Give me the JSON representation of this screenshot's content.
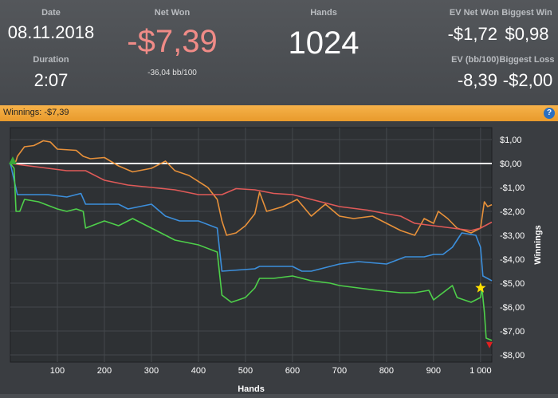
{
  "stats": {
    "date_label": "Date",
    "date_value": "08.11.2018",
    "duration_label": "Duration",
    "duration_value": "2:07",
    "net_won_label": "Net Won",
    "net_won_value": "-$7,39",
    "net_won_sub": "-36,04 bb/100",
    "hands_label": "Hands",
    "hands_value": "1024",
    "ev_net_won_label": "EV Net Won",
    "ev_net_won_value": "-$1,72",
    "biggest_win_label": "Biggest Win",
    "biggest_win_value": "$0,98",
    "ev_bb_label": "EV (bb/100)",
    "ev_bb_value": "-8,39",
    "biggest_loss_label": "Biggest Loss",
    "biggest_loss_value": "-$2,00"
  },
  "tab": {
    "label": "Winnings: -$7,39",
    "help_icon": "question-icon"
  },
  "colors": {
    "net_won": "#4ed04a",
    "ev": "#e8913a",
    "showdown": "#3c8fdc",
    "non_showdown": "#e05a58",
    "zero_line": "#ffffff",
    "negative": "#f08b87"
  },
  "chart_data": {
    "type": "line",
    "xlabel": "Hands",
    "ylabel": "Winnings",
    "xlim": [
      0,
      1024
    ],
    "ylim": [
      -8.3,
      1.5
    ],
    "x_ticks": [
      100,
      200,
      300,
      400,
      500,
      600,
      700,
      800,
      900,
      1000
    ],
    "x_tick_labels": [
      "100",
      "200",
      "300",
      "400",
      "500",
      "600",
      "700",
      "800",
      "900",
      "1 000"
    ],
    "y_ticks": [
      1,
      0,
      -1,
      -2,
      -3,
      -4,
      -5,
      -6,
      -7,
      -8
    ],
    "y_tick_labels": [
      "$1,00",
      "$0,00",
      "-$1,00",
      "-$2,00",
      "-$3,00",
      "-$4,00",
      "-$5,00",
      "-$6,00",
      "-$7,00",
      "-$8,00"
    ],
    "grid": true,
    "series": [
      {
        "key": "ev",
        "points": [
          [
            0,
            0
          ],
          [
            12,
            0.1
          ],
          [
            15,
            0.3
          ],
          [
            30,
            0.7
          ],
          [
            50,
            0.75
          ],
          [
            70,
            0.95
          ],
          [
            85,
            0.9
          ],
          [
            100,
            0.6
          ],
          [
            140,
            0.55
          ],
          [
            155,
            0.3
          ],
          [
            170,
            0.2
          ],
          [
            200,
            0.25
          ],
          [
            230,
            -0.1
          ],
          [
            260,
            -0.35
          ],
          [
            300,
            -0.2
          ],
          [
            330,
            0.1
          ],
          [
            350,
            -0.3
          ],
          [
            380,
            -0.5
          ],
          [
            420,
            -1.0
          ],
          [
            440,
            -1.5
          ],
          [
            450,
            -2.4
          ],
          [
            460,
            -3.0
          ],
          [
            480,
            -2.9
          ],
          [
            500,
            -2.6
          ],
          [
            520,
            -2.1
          ],
          [
            530,
            -1.2
          ],
          [
            545,
            -2.0
          ],
          [
            580,
            -1.8
          ],
          [
            610,
            -1.5
          ],
          [
            640,
            -2.2
          ],
          [
            670,
            -1.7
          ],
          [
            700,
            -2.2
          ],
          [
            730,
            -2.3
          ],
          [
            770,
            -2.2
          ],
          [
            800,
            -2.5
          ],
          [
            830,
            -2.8
          ],
          [
            860,
            -3.0
          ],
          [
            880,
            -2.3
          ],
          [
            900,
            -2.5
          ],
          [
            910,
            -2.0
          ],
          [
            930,
            -2.3
          ],
          [
            950,
            -2.7
          ],
          [
            980,
            -2.9
          ],
          [
            1000,
            -2.7
          ],
          [
            1008,
            -1.6
          ],
          [
            1015,
            -1.8
          ],
          [
            1024,
            -1.72
          ]
        ]
      },
      {
        "key": "non_showdown",
        "points": [
          [
            0,
            0
          ],
          [
            40,
            -0.1
          ],
          [
            80,
            -0.2
          ],
          [
            120,
            -0.3
          ],
          [
            160,
            -0.3
          ],
          [
            200,
            -0.7
          ],
          [
            250,
            -0.9
          ],
          [
            300,
            -1.0
          ],
          [
            350,
            -1.1
          ],
          [
            400,
            -1.3
          ],
          [
            450,
            -1.3
          ],
          [
            480,
            -1.05
          ],
          [
            520,
            -1.1
          ],
          [
            560,
            -1.25
          ],
          [
            600,
            -1.3
          ],
          [
            650,
            -1.55
          ],
          [
            700,
            -1.8
          ],
          [
            760,
            -1.95
          ],
          [
            800,
            -2.1
          ],
          [
            830,
            -2.2
          ],
          [
            860,
            -2.5
          ],
          [
            900,
            -2.6
          ],
          [
            940,
            -2.7
          ],
          [
            980,
            -2.8
          ],
          [
            1000,
            -2.7
          ],
          [
            1024,
            -2.45
          ]
        ]
      },
      {
        "key": "showdown",
        "points": [
          [
            0,
            0
          ],
          [
            15,
            -1.3
          ],
          [
            30,
            -1.3
          ],
          [
            80,
            -1.3
          ],
          [
            120,
            -1.4
          ],
          [
            150,
            -1.25
          ],
          [
            160,
            -1.7
          ],
          [
            230,
            -1.7
          ],
          [
            250,
            -1.9
          ],
          [
            300,
            -1.7
          ],
          [
            330,
            -2.2
          ],
          [
            360,
            -2.4
          ],
          [
            400,
            -2.4
          ],
          [
            440,
            -2.7
          ],
          [
            450,
            -4.5
          ],
          [
            520,
            -4.4
          ],
          [
            530,
            -4.3
          ],
          [
            560,
            -4.3
          ],
          [
            600,
            -4.3
          ],
          [
            620,
            -4.5
          ],
          [
            640,
            -4.5
          ],
          [
            660,
            -4.4
          ],
          [
            700,
            -4.2
          ],
          [
            740,
            -4.1
          ],
          [
            800,
            -4.2
          ],
          [
            840,
            -3.9
          ],
          [
            880,
            -3.9
          ],
          [
            900,
            -3.8
          ],
          [
            920,
            -3.8
          ],
          [
            940,
            -3.5
          ],
          [
            960,
            -2.9
          ],
          [
            990,
            -3.0
          ],
          [
            1000,
            -3.5
          ],
          [
            1005,
            -4.7
          ],
          [
            1024,
            -4.9
          ]
        ]
      },
      {
        "key": "net_won",
        "points": [
          [
            0,
            0
          ],
          [
            8,
            -0.2
          ],
          [
            12,
            -2.0
          ],
          [
            20,
            -2.0
          ],
          [
            30,
            -1.5
          ],
          [
            60,
            -1.6
          ],
          [
            100,
            -1.9
          ],
          [
            120,
            -2.0
          ],
          [
            140,
            -1.9
          ],
          [
            155,
            -2.0
          ],
          [
            160,
            -2.7
          ],
          [
            200,
            -2.4
          ],
          [
            230,
            -2.6
          ],
          [
            260,
            -2.3
          ],
          [
            290,
            -2.6
          ],
          [
            320,
            -2.9
          ],
          [
            350,
            -3.2
          ],
          [
            400,
            -3.4
          ],
          [
            440,
            -3.7
          ],
          [
            450,
            -5.5
          ],
          [
            470,
            -5.8
          ],
          [
            500,
            -5.6
          ],
          [
            520,
            -5.2
          ],
          [
            530,
            -4.8
          ],
          [
            560,
            -4.8
          ],
          [
            600,
            -4.7
          ],
          [
            640,
            -4.9
          ],
          [
            680,
            -5.0
          ],
          [
            700,
            -5.1
          ],
          [
            740,
            -5.2
          ],
          [
            780,
            -5.3
          ],
          [
            830,
            -5.4
          ],
          [
            860,
            -5.4
          ],
          [
            890,
            -5.3
          ],
          [
            900,
            -5.7
          ],
          [
            940,
            -5.1
          ],
          [
            950,
            -5.6
          ],
          [
            980,
            -5.8
          ],
          [
            1000,
            -5.6
          ],
          [
            1003,
            -5.2
          ],
          [
            1008,
            -6.2
          ],
          [
            1012,
            -7.3
          ],
          [
            1024,
            -7.39
          ]
        ]
      }
    ],
    "markers": [
      {
        "type": "triangle-up",
        "color": "#3aa83a",
        "x": 0,
        "y": 0
      },
      {
        "type": "star",
        "color": "#ffe000",
        "x": 1000,
        "y": -5.2
      },
      {
        "type": "triangle-down",
        "color": "#e02020",
        "x": 1024,
        "y": -7.39
      }
    ]
  }
}
